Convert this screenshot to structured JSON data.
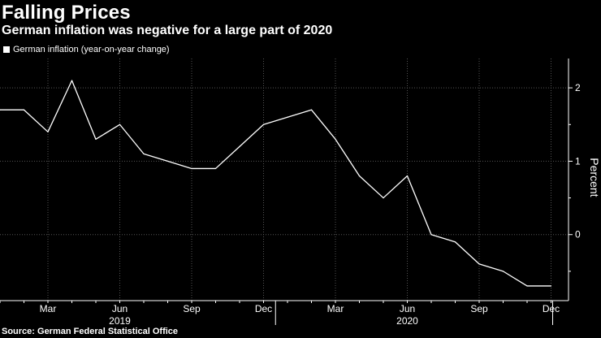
{
  "title": "Falling Prices",
  "subtitle": "German inflation was negative for a large part of 2020",
  "source": "Source: German Federal Statistical Office",
  "colors": {
    "background": "#000000",
    "line": "#ffffff",
    "grid": "#555555"
  },
  "chart_data": {
    "type": "line",
    "title": "Falling Prices",
    "subtitle": "German inflation was negative for a large part of 2020",
    "xlabel": "",
    "ylabel": "Percent",
    "legend_position": "top-left",
    "ylim": [
      -0.9,
      2.4
    ],
    "yticks": [
      0,
      1,
      2
    ],
    "grid": true,
    "x": [
      "Jan 2019",
      "Feb 2019",
      "Mar 2019",
      "Apr 2019",
      "May 2019",
      "Jun 2019",
      "Jul 2019",
      "Aug 2019",
      "Sep 2019",
      "Oct 2019",
      "Nov 2019",
      "Dec 2019",
      "Jan 2020",
      "Feb 2020",
      "Mar 2020",
      "Apr 2020",
      "May 2020",
      "Jun 2020",
      "Jul 2020",
      "Aug 2020",
      "Sep 2020",
      "Oct 2020",
      "Nov 2020",
      "Dec 2020"
    ],
    "month_ticks": [
      {
        "label": "Mar",
        "index": 2
      },
      {
        "label": "Jun",
        "index": 5
      },
      {
        "label": "Sep",
        "index": 8
      },
      {
        "label": "Dec",
        "index": 11
      },
      {
        "label": "Mar",
        "index": 14
      },
      {
        "label": "Jun",
        "index": 17
      },
      {
        "label": "Sep",
        "index": 20
      },
      {
        "label": "Dec",
        "index": 23
      }
    ],
    "year_ticks": [
      {
        "label": "2019",
        "index": 5
      },
      {
        "label": "2020",
        "index": 17
      }
    ],
    "series": [
      {
        "name": "German inflation (year-on-year change)",
        "values": [
          1.7,
          1.7,
          1.4,
          2.1,
          1.3,
          1.5,
          1.1,
          1.0,
          0.9,
          0.9,
          1.2,
          1.5,
          1.6,
          1.7,
          1.3,
          0.8,
          0.5,
          0.8,
          0.0,
          -0.1,
          -0.4,
          -0.5,
          -0.7,
          -0.7
        ]
      }
    ]
  }
}
